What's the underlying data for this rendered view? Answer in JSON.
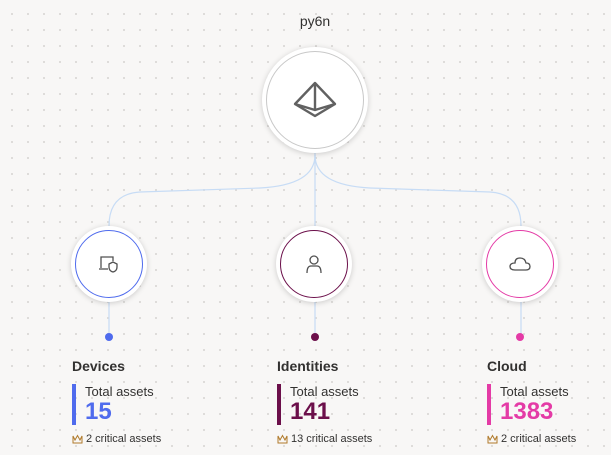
{
  "root": {
    "title": "py6n",
    "icon": "pyramid-icon"
  },
  "categories": [
    {
      "name": "Devices",
      "icon": "device-shield-icon",
      "color": "#4f6bed",
      "total_label": "Total assets",
      "total": "15",
      "critical": "2 critical assets"
    },
    {
      "name": "Identities",
      "icon": "person-icon",
      "color": "#6b0f4a",
      "total_label": "Total assets",
      "total": "141",
      "critical": "13 critical assets"
    },
    {
      "name": "Cloud",
      "icon": "cloud-icon",
      "color": "#e43ba6",
      "total_label": "Total assets",
      "total": "1383",
      "critical": "2 critical assets"
    }
  ],
  "critical_icon": "crown-icon",
  "connector_color": "#c7dcf5"
}
